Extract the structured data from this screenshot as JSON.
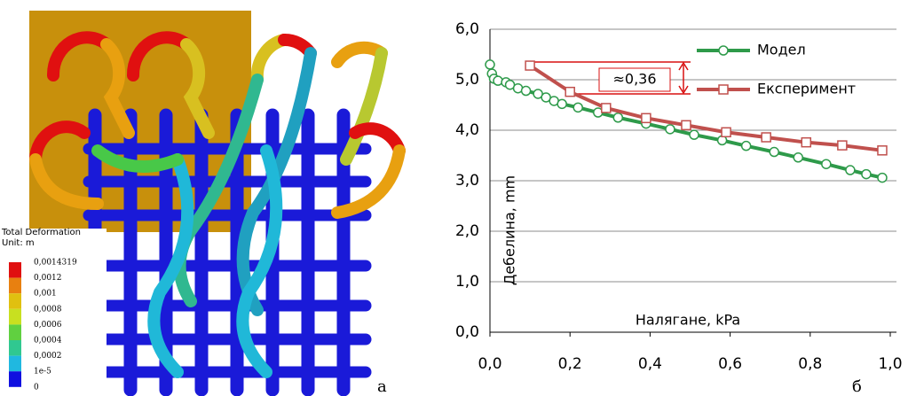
{
  "panel_a": {
    "legend_title": "Total Deformation",
    "unit": "Unit: m",
    "labels": [
      "0,0014319",
      "0,0012",
      "0,001",
      "0,0008",
      "0,0006",
      "0,0004",
      "0,0002",
      "1e-5",
      "0"
    ],
    "panel_label": "а"
  },
  "chart_data": {
    "type": "line",
    "x_label": "Налягане, kPa",
    "y_label": "Дебелина, mm",
    "annotation": "≈0,36",
    "panel_label": "б",
    "xlim": [
      0,
      1
    ],
    "ylim": [
      0,
      6
    ],
    "grid": true,
    "xticks": [
      {
        "value": 0,
        "label": "0,0"
      },
      {
        "value": 0.2,
        "label": "0,2"
      },
      {
        "value": 0.4,
        "label": "0,4"
      },
      {
        "value": 0.6,
        "label": "0,6"
      },
      {
        "value": 0.8,
        "label": "0,8"
      },
      {
        "value": 1,
        "label": "1,0"
      }
    ],
    "yticks": [
      {
        "value": 0,
        "label": "0,0"
      },
      {
        "value": 1,
        "label": "1,0"
      },
      {
        "value": 2,
        "label": "2,0"
      },
      {
        "value": 3,
        "label": "3,0"
      },
      {
        "value": 4,
        "label": "4,0"
      },
      {
        "value": 5,
        "label": "5,0"
      },
      {
        "value": 6,
        "label": "6,0"
      }
    ],
    "series": [
      {
        "name": "Модел",
        "color": "#2e9a4a",
        "marker": "circle",
        "x": [
          0,
          0.005,
          0.01,
          0.02,
          0.04,
          0.05,
          0.07,
          0.09,
          0.12,
          0.14,
          0.16,
          0.18,
          0.22,
          0.27,
          0.32,
          0.39,
          0.45,
          0.51,
          0.58,
          0.64,
          0.71,
          0.77,
          0.84,
          0.9,
          0.94,
          0.98
        ],
        "values": [
          5.3,
          5.12,
          5.02,
          4.98,
          4.95,
          4.9,
          4.83,
          4.78,
          4.72,
          4.65,
          4.58,
          4.52,
          4.45,
          4.35,
          4.25,
          4.13,
          4.02,
          3.91,
          3.8,
          3.69,
          3.57,
          3.46,
          3.33,
          3.21,
          3.13,
          3.06
        ]
      },
      {
        "name": "Експеримент",
        "color": "#c0504d",
        "marker": "square",
        "x": [
          0.1,
          0.2,
          0.29,
          0.39,
          0.49,
          0.59,
          0.69,
          0.79,
          0.88,
          0.98
        ],
        "values": [
          5.28,
          4.76,
          4.44,
          4.24,
          4.1,
          3.96,
          3.86,
          3.76,
          3.7,
          3.6
        ]
      }
    ]
  }
}
